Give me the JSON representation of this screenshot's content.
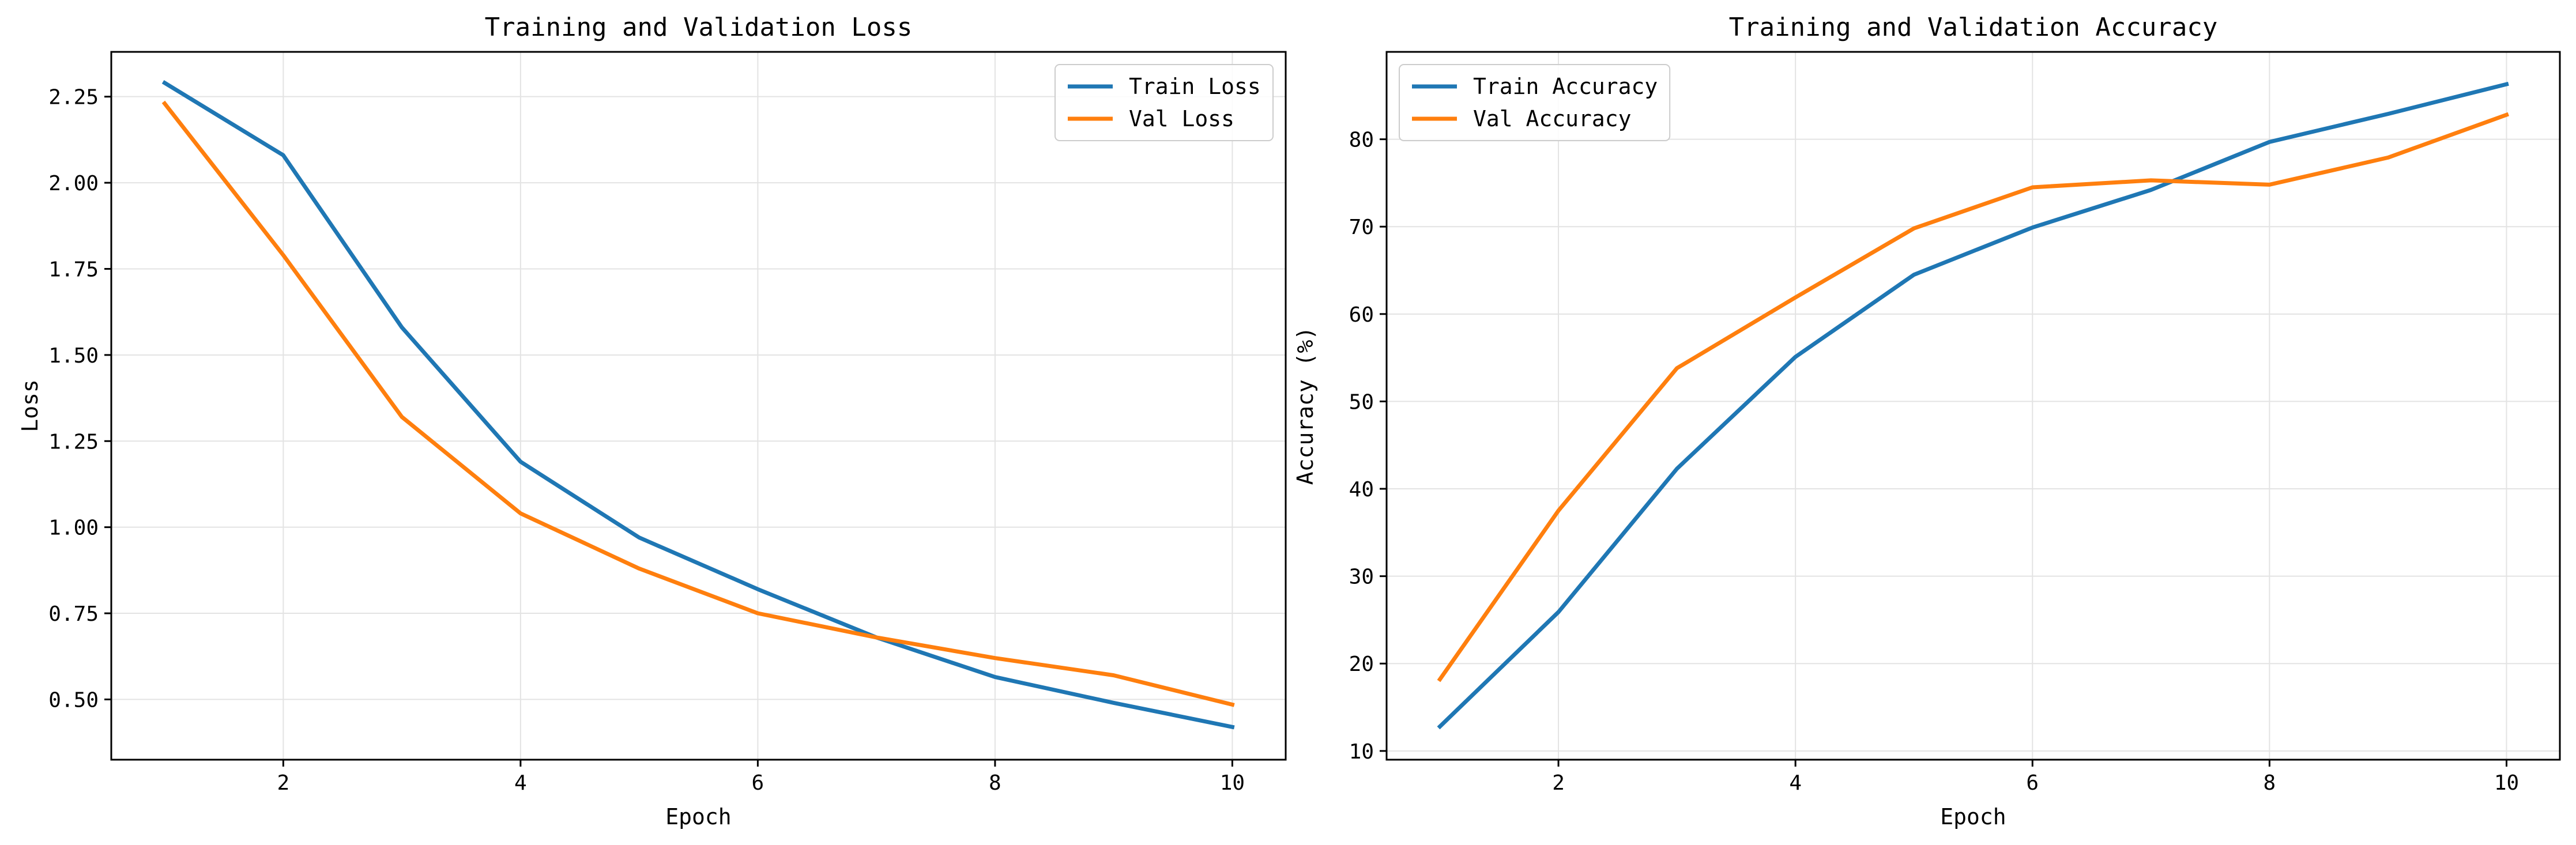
{
  "chart_data": [
    {
      "type": "line",
      "title": "Training and Validation Loss",
      "xlabel": "Epoch",
      "ylabel": "Loss",
      "x": [
        1,
        2,
        3,
        4,
        5,
        6,
        7,
        8,
        9,
        10
      ],
      "xlim": [
        0.55,
        10.45
      ],
      "ylim": [
        0.325,
        2.38
      ],
      "xticks": [
        2,
        4,
        6,
        8,
        10
      ],
      "xtick_labels": [
        "2",
        "4",
        "6",
        "8",
        "10"
      ],
      "yticks": [
        0.5,
        0.75,
        1.0,
        1.25,
        1.5,
        1.75,
        2.0,
        2.25
      ],
      "ytick_labels": [
        "0.50",
        "0.75",
        "1.00",
        "1.25",
        "1.50",
        "1.75",
        "2.00",
        "2.25"
      ],
      "grid": true,
      "legend_position": "top-right",
      "series": [
        {
          "name": "Train Loss",
          "color": "#1f77b4",
          "values": [
            2.29,
            2.08,
            1.58,
            1.19,
            0.97,
            0.82,
            0.68,
            0.565,
            0.49,
            0.42
          ]
        },
        {
          "name": "Val Loss",
          "color": "#ff7f0e",
          "values": [
            2.23,
            1.79,
            1.32,
            1.04,
            0.88,
            0.75,
            0.68,
            0.62,
            0.57,
            0.485
          ]
        }
      ]
    },
    {
      "type": "line",
      "title": "Training and Validation Accuracy",
      "xlabel": "Epoch",
      "ylabel": "Accuracy (%)",
      "x": [
        1,
        2,
        3,
        4,
        5,
        6,
        7,
        8,
        9,
        10
      ],
      "xlim": [
        0.55,
        10.45
      ],
      "ylim": [
        9.0,
        90.0
      ],
      "xticks": [
        2,
        4,
        6,
        8,
        10
      ],
      "xtick_labels": [
        "2",
        "4",
        "6",
        "8",
        "10"
      ],
      "yticks": [
        10,
        20,
        30,
        40,
        50,
        60,
        70,
        80
      ],
      "ytick_labels": [
        "10",
        "20",
        "30",
        "40",
        "50",
        "60",
        "70",
        "80"
      ],
      "grid": true,
      "legend_position": "top-left",
      "series": [
        {
          "name": "Train Accuracy",
          "color": "#1f77b4",
          "values": [
            12.8,
            25.9,
            42.3,
            55.1,
            64.5,
            69.9,
            74.2,
            79.7,
            82.9,
            86.3
          ]
        },
        {
          "name": "Val Accuracy",
          "color": "#ff7f0e",
          "values": [
            18.2,
            37.5,
            53.8,
            61.9,
            69.8,
            74.5,
            75.3,
            74.8,
            77.9,
            82.8
          ]
        }
      ]
    }
  ]
}
